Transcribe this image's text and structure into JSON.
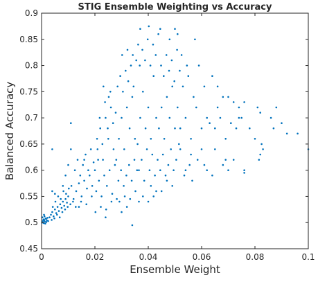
{
  "chart_data": {
    "type": "scatter",
    "title": "STIG Ensemble Weighting vs Accuracy",
    "xlabel": "Ensemble Weight",
    "ylabel": "Balanced Accuracy",
    "xlim": [
      0,
      0.1
    ],
    "ylim": [
      0.45,
      0.9
    ],
    "xticks": [
      "0",
      "0.02",
      "0.04",
      "0.06",
      "0.08",
      "0.1"
    ],
    "yticks": [
      "0.45",
      "0.5",
      "0.55",
      "0.6",
      "0.65",
      "0.7",
      "0.75",
      "0.8",
      "0.85",
      "0.9"
    ],
    "grid": false,
    "box": true,
    "marker_color": "#0072BD",
    "series": [
      {
        "points": [
          [
            0.0002,
            0.5
          ],
          [
            0.0005,
            0.503
          ],
          [
            0.0008,
            0.499
          ],
          [
            0.001,
            0.505
          ],
          [
            0.0012,
            0.502
          ],
          [
            0.0015,
            0.508
          ],
          [
            0.0018,
            0.501
          ],
          [
            0.002,
            0.504
          ],
          [
            0.0003,
            0.51
          ],
          [
            0.0007,
            0.506
          ],
          [
            0.0011,
            0.512
          ],
          [
            0.0014,
            0.498
          ],
          [
            0.0017,
            0.507
          ],
          [
            0.0022,
            0.509
          ],
          [
            0.0025,
            0.503
          ],
          [
            0.0009,
            0.515
          ],
          [
            0.003,
            0.51
          ],
          [
            0.0035,
            0.515
          ],
          [
            0.004,
            0.52
          ],
          [
            0.0045,
            0.512
          ],
          [
            0.005,
            0.525
          ],
          [
            0.0055,
            0.518
          ],
          [
            0.006,
            0.53
          ],
          [
            0.0065,
            0.522
          ],
          [
            0.007,
            0.535
          ],
          [
            0.0075,
            0.528
          ],
          [
            0.008,
            0.54
          ],
          [
            0.0085,
            0.532
          ],
          [
            0.009,
            0.545
          ],
          [
            0.0095,
            0.538
          ],
          [
            0.01,
            0.55
          ],
          [
            0.0038,
            0.505
          ],
          [
            0.0048,
            0.508
          ],
          [
            0.0058,
            0.515
          ],
          [
            0.0068,
            0.51
          ],
          [
            0.0078,
            0.52
          ],
          [
            0.0088,
            0.525
          ],
          [
            0.0098,
            0.53
          ],
          [
            0.0108,
            0.535
          ],
          [
            0.0118,
            0.54
          ],
          [
            0.0042,
            0.53
          ],
          [
            0.0052,
            0.54
          ],
          [
            0.0062,
            0.55
          ],
          [
            0.0072,
            0.545
          ],
          [
            0.0082,
            0.56
          ],
          [
            0.0092,
            0.555
          ],
          [
            0.0102,
            0.565
          ],
          [
            0.0112,
            0.57
          ],
          [
            0.012,
            0.545
          ],
          [
            0.013,
            0.56
          ],
          [
            0.014,
            0.575
          ],
          [
            0.015,
            0.55
          ],
          [
            0.016,
            0.58
          ],
          [
            0.017,
            0.565
          ],
          [
            0.018,
            0.59
          ],
          [
            0.019,
            0.57
          ],
          [
            0.0125,
            0.6
          ],
          [
            0.0135,
            0.62
          ],
          [
            0.0145,
            0.59
          ],
          [
            0.0155,
            0.61
          ],
          [
            0.0165,
            0.63
          ],
          [
            0.0175,
            0.6
          ],
          [
            0.0185,
            0.64
          ],
          [
            0.0195,
            0.615
          ],
          [
            0.0128,
            0.53
          ],
          [
            0.0148,
            0.54
          ],
          [
            0.0168,
            0.535
          ],
          [
            0.0188,
            0.55
          ],
          [
            0.011,
            0.69
          ],
          [
            0.004,
            0.64
          ],
          [
            0.011,
            0.64
          ],
          [
            0.01,
            0.61
          ],
          [
            0.02,
            0.6
          ],
          [
            0.021,
            0.64
          ],
          [
            0.022,
            0.68
          ],
          [
            0.023,
            0.62
          ],
          [
            0.024,
            0.7
          ],
          [
            0.025,
            0.66
          ],
          [
            0.026,
            0.72
          ],
          [
            0.027,
            0.64
          ],
          [
            0.0205,
            0.56
          ],
          [
            0.0215,
            0.58
          ],
          [
            0.0225,
            0.55
          ],
          [
            0.0235,
            0.59
          ],
          [
            0.0245,
            0.57
          ],
          [
            0.0255,
            0.6
          ],
          [
            0.0265,
            0.555
          ],
          [
            0.0275,
            0.61
          ],
          [
            0.0208,
            0.66
          ],
          [
            0.0218,
            0.7
          ],
          [
            0.0228,
            0.65
          ],
          [
            0.0238,
            0.73
          ],
          [
            0.0248,
            0.68
          ],
          [
            0.0258,
            0.75
          ],
          [
            0.0268,
            0.69
          ],
          [
            0.0278,
            0.71
          ],
          [
            0.0202,
            0.52
          ],
          [
            0.0222,
            0.53
          ],
          [
            0.0242,
            0.525
          ],
          [
            0.0262,
            0.54
          ],
          [
            0.0282,
            0.545
          ],
          [
            0.0232,
            0.76
          ],
          [
            0.0252,
            0.74
          ],
          [
            0.0212,
            0.62
          ],
          [
            0.028,
            0.62
          ],
          [
            0.029,
            0.66
          ],
          [
            0.03,
            0.7
          ],
          [
            0.031,
            0.64
          ],
          [
            0.032,
            0.72
          ],
          [
            0.033,
            0.68
          ],
          [
            0.034,
            0.74
          ],
          [
            0.035,
            0.66
          ],
          [
            0.0285,
            0.76
          ],
          [
            0.0295,
            0.78
          ],
          [
            0.0305,
            0.75
          ],
          [
            0.0315,
            0.79
          ],
          [
            0.0325,
            0.77
          ],
          [
            0.0335,
            0.8
          ],
          [
            0.0345,
            0.76
          ],
          [
            0.0355,
            0.81
          ],
          [
            0.0288,
            0.58
          ],
          [
            0.0298,
            0.6
          ],
          [
            0.0308,
            0.57
          ],
          [
            0.0318,
            0.59
          ],
          [
            0.0328,
            0.61
          ],
          [
            0.0338,
            0.58
          ],
          [
            0.0348,
            0.62
          ],
          [
            0.0358,
            0.6
          ],
          [
            0.0292,
            0.54
          ],
          [
            0.0312,
            0.55
          ],
          [
            0.0332,
            0.545
          ],
          [
            0.0352,
            0.56
          ],
          [
            0.0302,
            0.82
          ],
          [
            0.0322,
            0.83
          ],
          [
            0.0342,
            0.82
          ],
          [
            0.0362,
            0.84
          ],
          [
            0.036,
            0.65
          ],
          [
            0.037,
            0.7
          ],
          [
            0.038,
            0.75
          ],
          [
            0.039,
            0.68
          ],
          [
            0.04,
            0.72
          ],
          [
            0.041,
            0.66
          ],
          [
            0.042,
            0.78
          ],
          [
            0.043,
            0.7
          ],
          [
            0.0365,
            0.6
          ],
          [
            0.0375,
            0.62
          ],
          [
            0.0385,
            0.58
          ],
          [
            0.0395,
            0.64
          ],
          [
            0.0405,
            0.6
          ],
          [
            0.0415,
            0.63
          ],
          [
            0.0425,
            0.59
          ],
          [
            0.0435,
            0.62
          ],
          [
            0.0368,
            0.8
          ],
          [
            0.0378,
            0.83
          ],
          [
            0.0388,
            0.81
          ],
          [
            0.0398,
            0.85
          ],
          [
            0.0408,
            0.8
          ],
          [
            0.0418,
            0.84
          ],
          [
            0.0428,
            0.82
          ],
          [
            0.0438,
            0.86
          ],
          [
            0.037,
            0.87
          ],
          [
            0.0402,
            0.875
          ],
          [
            0.0445,
            0.87
          ],
          [
            0.05,
            0.87
          ],
          [
            0.051,
            0.86
          ],
          [
            0.048,
            0.85
          ],
          [
            0.0365,
            0.54
          ],
          [
            0.038,
            0.55
          ],
          [
            0.044,
            0.68
          ],
          [
            0.045,
            0.72
          ],
          [
            0.046,
            0.66
          ],
          [
            0.047,
            0.74
          ],
          [
            0.048,
            0.7
          ],
          [
            0.049,
            0.76
          ],
          [
            0.05,
            0.68
          ],
          [
            0.051,
            0.72
          ],
          [
            0.0445,
            0.6
          ],
          [
            0.0455,
            0.63
          ],
          [
            0.0465,
            0.59
          ],
          [
            0.0475,
            0.61
          ],
          [
            0.0485,
            0.64
          ],
          [
            0.0495,
            0.6
          ],
          [
            0.0505,
            0.62
          ],
          [
            0.0515,
            0.65
          ],
          [
            0.0448,
            0.8
          ],
          [
            0.0458,
            0.78
          ],
          [
            0.0468,
            0.82
          ],
          [
            0.0478,
            0.79
          ],
          [
            0.0488,
            0.81
          ],
          [
            0.0498,
            0.77
          ],
          [
            0.0508,
            0.83
          ],
          [
            0.0518,
            0.79
          ],
          [
            0.052,
            0.68
          ],
          [
            0.054,
            0.7
          ],
          [
            0.056,
            0.66
          ],
          [
            0.058,
            0.72
          ],
          [
            0.06,
            0.68
          ],
          [
            0.052,
            0.64
          ],
          [
            0.054,
            0.6
          ],
          [
            0.056,
            0.63
          ],
          [
            0.053,
            0.76
          ],
          [
            0.055,
            0.78
          ],
          [
            0.057,
            0.74
          ],
          [
            0.059,
            0.8
          ],
          [
            0.061,
            0.76
          ],
          [
            0.0525,
            0.82
          ],
          [
            0.0545,
            0.8
          ],
          [
            0.0575,
            0.85
          ],
          [
            0.0535,
            0.59
          ],
          [
            0.0555,
            0.61
          ],
          [
            0.0565,
            0.58
          ],
          [
            0.0585,
            0.62
          ],
          [
            0.062,
            0.7
          ],
          [
            0.06,
            0.64
          ],
          [
            0.061,
            0.61
          ],
          [
            0.063,
            0.69
          ],
          [
            0.065,
            0.68
          ],
          [
            0.067,
            0.7
          ],
          [
            0.069,
            0.66
          ],
          [
            0.071,
            0.69
          ],
          [
            0.073,
            0.68
          ],
          [
            0.075,
            0.7
          ],
          [
            0.066,
            0.72
          ],
          [
            0.068,
            0.74
          ],
          [
            0.064,
            0.78
          ],
          [
            0.066,
            0.76
          ],
          [
            0.07,
            0.74
          ],
          [
            0.072,
            0.73
          ],
          [
            0.074,
            0.72
          ],
          [
            0.076,
            0.73
          ],
          [
            0.065,
            0.64
          ],
          [
            0.069,
            0.62
          ],
          [
            0.062,
            0.6
          ],
          [
            0.064,
            0.59
          ],
          [
            0.068,
            0.61
          ],
          [
            0.07,
            0.6
          ],
          [
            0.072,
            0.62
          ],
          [
            0.076,
            0.6
          ],
          [
            0.078,
            0.68
          ],
          [
            0.08,
            0.66
          ],
          [
            0.081,
            0.72
          ],
          [
            0.082,
            0.71
          ],
          [
            0.0815,
            0.62
          ],
          [
            0.0825,
            0.65
          ],
          [
            0.083,
            0.64
          ],
          [
            0.082,
            0.63
          ],
          [
            0.086,
            0.7
          ],
          [
            0.088,
            0.72
          ],
          [
            0.087,
            0.68
          ],
          [
            0.09,
            0.69
          ],
          [
            0.092,
            0.67
          ],
          [
            0.096,
            0.67
          ],
          [
            0.1,
            0.64
          ],
          [
            0.076,
            0.595
          ],
          [
            0.074,
            0.7
          ],
          [
            0.034,
            0.495
          ],
          [
            0.005,
            0.555
          ],
          [
            0.004,
            0.56
          ],
          [
            0.008,
            0.57
          ],
          [
            0.009,
            0.59
          ],
          [
            0.014,
            0.53
          ],
          [
            0.016,
            0.62
          ],
          [
            0.024,
            0.51
          ],
          [
            0.03,
            0.52
          ],
          [
            0.032,
            0.53
          ],
          [
            0.04,
            0.54
          ],
          [
            0.042,
            0.55
          ],
          [
            0.043,
            0.56
          ],
          [
            0.041,
            0.57
          ],
          [
            0.045,
            0.56
          ],
          [
            0.047,
            0.58
          ],
          [
            0.049,
            0.57
          ]
        ]
      }
    ]
  }
}
